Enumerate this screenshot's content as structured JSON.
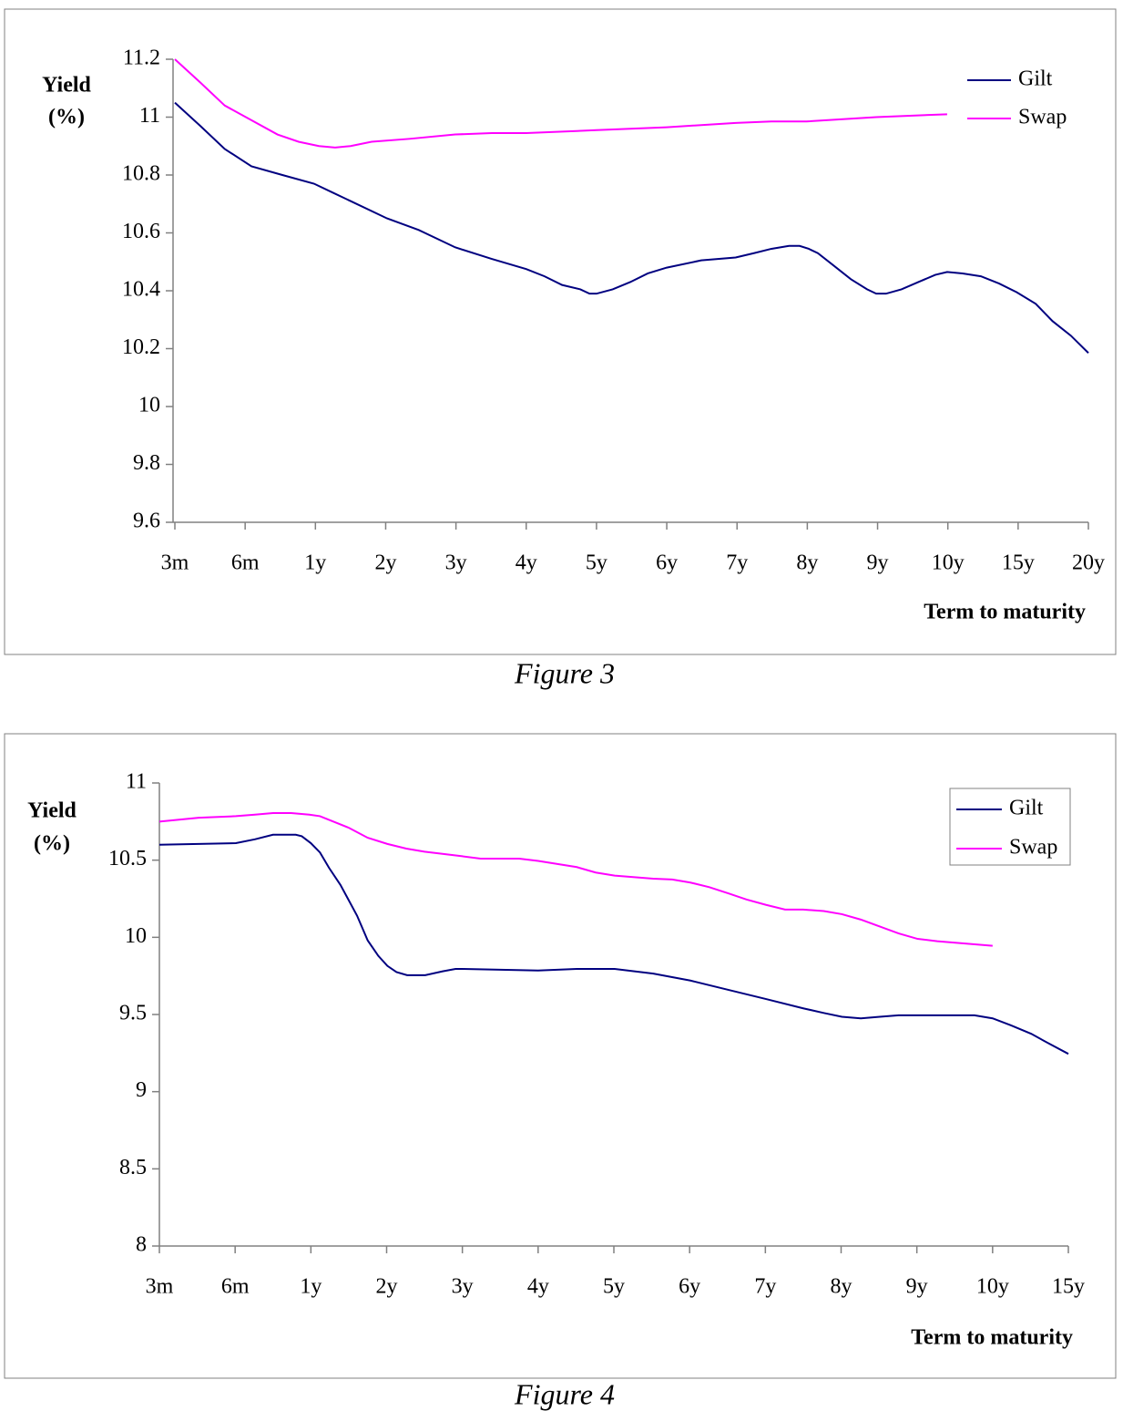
{
  "chart_data": [
    {
      "type": "line",
      "caption": "Figure 3",
      "ylabel": [
        "Yield",
        "(%)"
      ],
      "xlabel": "Term to maturity",
      "xlim": [
        0,
        13
      ],
      "xticks": [
        {
          "value": 0,
          "label": "3m"
        },
        {
          "value": 1,
          "label": "6m"
        },
        {
          "value": 2,
          "label": "1y"
        },
        {
          "value": 3,
          "label": "2y"
        },
        {
          "value": 4,
          "label": "3y"
        },
        {
          "value": 5,
          "label": "4y"
        },
        {
          "value": 6,
          "label": "5y"
        },
        {
          "value": 7,
          "label": "6y"
        },
        {
          "value": 8,
          "label": "7y"
        },
        {
          "value": 9,
          "label": "8y"
        },
        {
          "value": 10,
          "label": "9y"
        },
        {
          "value": 11,
          "label": "10y"
        },
        {
          "value": 12,
          "label": "15y"
        },
        {
          "value": 13,
          "label": "20y"
        }
      ],
      "ylim": [
        9.6,
        11.2
      ],
      "yticks": [
        9.6,
        9.8,
        10,
        10.2,
        10.4,
        10.6,
        10.8,
        11,
        11.2
      ],
      "legend": "upper right",
      "legend_box": false,
      "series": [
        {
          "name": "Gilt",
          "color": "#000080",
          "x": [
            0,
            0.36,
            0.71,
            1.09,
            1.53,
            1.98,
            2.24,
            2.5,
            3.02,
            3.47,
            3.99,
            4.51,
            5,
            5.26,
            5.51,
            5.77,
            5.9,
            6,
            6.23,
            6.48,
            6.73,
            7,
            7.49,
            7.98,
            8.24,
            8.49,
            8.74,
            8.89,
            9.02,
            9.15,
            9.36,
            9.62,
            9.85,
            9.98,
            10.12,
            10.34,
            10.58,
            10.82,
            10.99,
            11.21,
            11.47,
            11.73,
            11.98,
            12.25,
            12.49,
            12.75,
            13
          ],
          "values": [
            11.05,
            10.97,
            10.89,
            10.83,
            10.8,
            10.77,
            10.74,
            10.71,
            10.65,
            10.61,
            10.55,
            10.51,
            10.475,
            10.45,
            10.42,
            10.405,
            10.39,
            10.39,
            10.405,
            10.43,
            10.46,
            10.48,
            10.505,
            10.515,
            10.53,
            10.545,
            10.555,
            10.555,
            10.545,
            10.53,
            10.49,
            10.44,
            10.405,
            10.39,
            10.39,
            10.405,
            10.43,
            10.455,
            10.465,
            10.46,
            10.45,
            10.425,
            10.395,
            10.355,
            10.295,
            10.245,
            10.185
          ]
        },
        {
          "name": "Swap",
          "color": "#ff00ff",
          "x": [
            0,
            0.36,
            0.71,
            1.01,
            1.46,
            1.76,
            2.05,
            2.28,
            2.5,
            2.8,
            3.34,
            3.99,
            4.51,
            5,
            6,
            7,
            7.98,
            8.49,
            8.99,
            9.98,
            10.99
          ],
          "values": [
            11.2,
            11.12,
            11.04,
            11,
            10.94,
            10.915,
            10.9,
            10.895,
            10.9,
            10.915,
            10.925,
            10.94,
            10.945,
            10.945,
            10.955,
            10.965,
            10.98,
            10.985,
            10.985,
            11,
            11.01
          ]
        }
      ]
    },
    {
      "type": "line",
      "caption": "Figure 4",
      "ylabel": [
        "Yield",
        "(%)"
      ],
      "xlabel": "Term to maturity",
      "xlim": [
        0,
        12
      ],
      "xticks": [
        {
          "value": 0,
          "label": "3m"
        },
        {
          "value": 1,
          "label": "6m"
        },
        {
          "value": 2,
          "label": "1y"
        },
        {
          "value": 3,
          "label": "2y"
        },
        {
          "value": 4,
          "label": "3y"
        },
        {
          "value": 5,
          "label": "4y"
        },
        {
          "value": 6,
          "label": "5y"
        },
        {
          "value": 7,
          "label": "6y"
        },
        {
          "value": 8,
          "label": "7y"
        },
        {
          "value": 9,
          "label": "8y"
        },
        {
          "value": 10,
          "label": "9y"
        },
        {
          "value": 11,
          "label": "10y"
        },
        {
          "value": 12,
          "label": "15y"
        }
      ],
      "ylim": [
        8,
        11
      ],
      "yticks": [
        8,
        8.5,
        9,
        9.5,
        10,
        10.5,
        11
      ],
      "legend": "upper right",
      "legend_box": true,
      "series": [
        {
          "name": "Gilt",
          "color": "#000080",
          "x": [
            0,
            1.01,
            1.26,
            1.5,
            1.8,
            1.88,
            2,
            2.12,
            2.24,
            2.39,
            2.61,
            2.75,
            2.89,
            3.01,
            3.13,
            3.27,
            3.51,
            3.74,
            3.91,
            4,
            5,
            5.51,
            6.01,
            6.52,
            7.01,
            7.51,
            8.01,
            8.5,
            8.77,
            9.01,
            9.26,
            9.51,
            9.76,
            10.01,
            10.52,
            10.76,
            11,
            11.24,
            11.51,
            11.75,
            12
          ],
          "values": [
            10.6,
            10.61,
            10.635,
            10.665,
            10.665,
            10.655,
            10.61,
            10.55,
            10.45,
            10.34,
            10.14,
            9.98,
            9.88,
            9.815,
            9.775,
            9.755,
            9.755,
            9.78,
            9.795,
            9.795,
            9.785,
            9.795,
            9.795,
            9.765,
            9.72,
            9.66,
            9.6,
            9.54,
            9.51,
            9.485,
            9.475,
            9.485,
            9.495,
            9.495,
            9.495,
            9.495,
            9.475,
            9.43,
            9.375,
            9.31,
            9.245
          ]
        },
        {
          "name": "Swap",
          "color": "#ff00ff",
          "x": [
            0,
            0.52,
            1.01,
            1.26,
            1.5,
            1.74,
            1.98,
            2.12,
            2.5,
            2.75,
            3.01,
            3.26,
            3.5,
            4,
            4.24,
            4.75,
            5,
            5.51,
            5.76,
            6.01,
            6.52,
            6.77,
            7.01,
            7.26,
            7.51,
            7.75,
            8.01,
            8.26,
            8.5,
            8.77,
            9.01,
            9.26,
            9.51,
            9.76,
            10.01,
            10.27,
            11
          ],
          "values": [
            10.75,
            10.775,
            10.785,
            10.795,
            10.805,
            10.805,
            10.795,
            10.785,
            10.71,
            10.645,
            10.605,
            10.575,
            10.555,
            10.525,
            10.51,
            10.51,
            10.495,
            10.455,
            10.42,
            10.4,
            10.38,
            10.375,
            10.355,
            10.325,
            10.285,
            10.245,
            10.21,
            10.18,
            10.18,
            10.17,
            10.15,
            10.115,
            10.07,
            10.025,
            9.99,
            9.975,
            9.945
          ]
        }
      ]
    }
  ]
}
